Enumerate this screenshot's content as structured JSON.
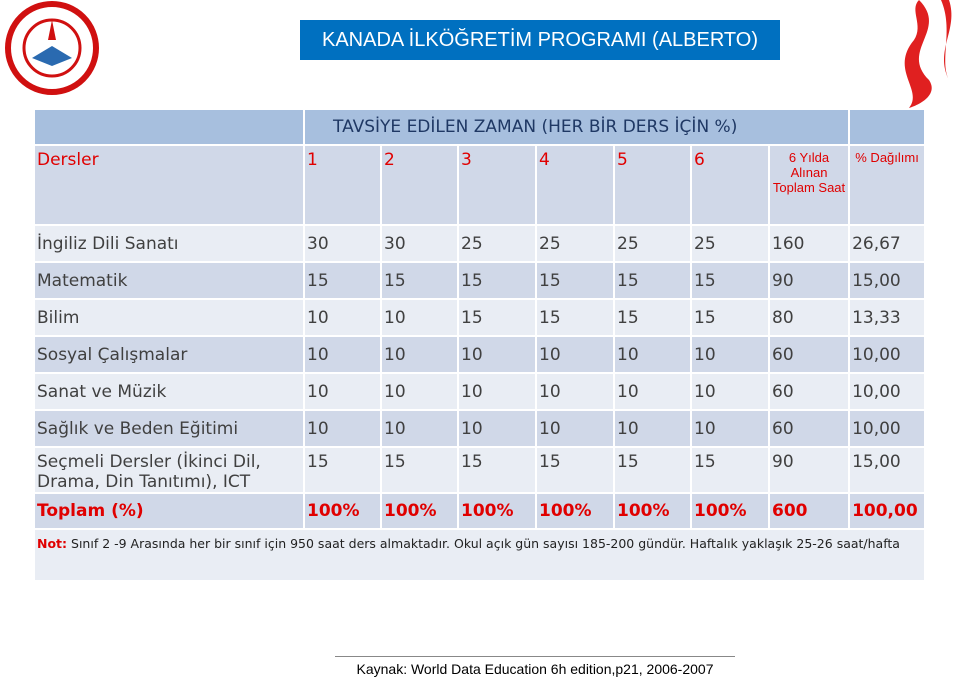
{
  "title": "KANADA İLKÖĞRETİM PROGRAMI (ALBERTO)",
  "table": {
    "header_title": "TAVSİYE EDİLEN ZAMAN (HER BİR DERS İÇİN %)",
    "columns": [
      "Dersler",
      "1",
      "2",
      "3",
      "4",
      "5",
      "6",
      "6 Yılda Alınan Toplam Saat",
      "% Dağılımı"
    ],
    "rows": [
      [
        "İngiliz Dili Sanatı",
        "30",
        "30",
        "25",
        "25",
        "25",
        "25",
        "160",
        "26,67"
      ],
      [
        "Matematik",
        "15",
        "15",
        "15",
        "15",
        "15",
        "15",
        "90",
        "15,00"
      ],
      [
        "Bilim",
        "10",
        "10",
        "15",
        "15",
        "15",
        "15",
        "80",
        "13,33"
      ],
      [
        "Sosyal Çalışmalar",
        "10",
        "10",
        "10",
        "10",
        "10",
        "10",
        "60",
        "10,00"
      ],
      [
        "Sanat ve Müzik",
        "10",
        "10",
        "10",
        "10",
        "10",
        "10",
        "60",
        "10,00"
      ],
      [
        "Sağlık ve Beden Eğitimi",
        "10",
        "10",
        "10",
        "10",
        "10",
        "10",
        "60",
        "10,00"
      ],
      [
        "Seçmeli Dersler (İkinci Dil, Drama, Din Tanıtımı), ICT",
        "15",
        "15",
        "15",
        "15",
        "15",
        "15",
        "90",
        "15,00"
      ]
    ],
    "total": [
      "Toplam (%)",
      "100%",
      "100%",
      "100%",
      "100%",
      "100%",
      "100%",
      "600",
      "100,00"
    ]
  },
  "note": {
    "label": "Not:",
    "text": "Sınıf 2 -9 Arasında her bir sınıf için 950 saat ders almaktadır. Okul açık gün sayısı 185-200 gündür. Haftalık yaklaşık  25-26 saat/hafta"
  },
  "source": "Kaynak:  World Data Education 6h edition,p21, 2006-2007"
}
